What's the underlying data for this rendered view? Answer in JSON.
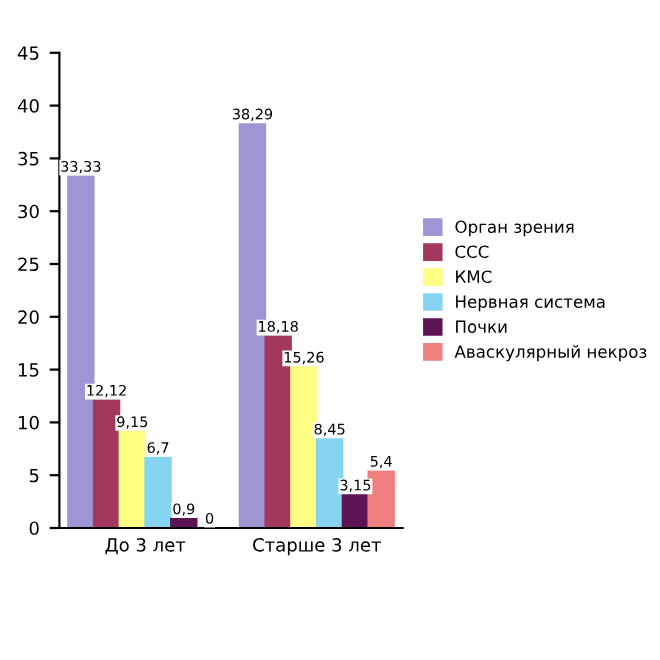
{
  "chart_data": {
    "type": "bar",
    "categories": [
      "До 3 лет",
      "Старше 3 лет"
    ],
    "series": [
      {
        "name": "Орган зрения",
        "color": "#9f94d4",
        "values": [
          33.33,
          38.29
        ],
        "value_labels": [
          "33,33",
          "38,29"
        ]
      },
      {
        "name": "ССС",
        "color": "#a3385e",
        "values": [
          12.12,
          18.18
        ],
        "value_labels": [
          "12,12",
          "18,18"
        ]
      },
      {
        "name": "КМС",
        "color": "#ffff84",
        "values": [
          9.15,
          15.26
        ],
        "value_labels": [
          "9,15",
          "15,26"
        ]
      },
      {
        "name": "Нервная система",
        "color": "#86d3f2",
        "values": [
          6.7,
          8.45
        ],
        "value_labels": [
          "6,7",
          "8,45"
        ]
      },
      {
        "name": "Почки",
        "color": "#5c1454",
        "values": [
          0.9,
          3.15
        ],
        "value_labels": [
          "0,9",
          "3,15"
        ]
      },
      {
        "name": "Аваскулярный некроз",
        "color": "#f08080",
        "values": [
          0,
          5.4
        ],
        "value_labels": [
          "0",
          "5,4"
        ]
      }
    ],
    "ylim": [
      0,
      45
    ],
    "yticks": [
      0,
      5,
      10,
      15,
      20,
      25,
      30,
      35,
      40,
      45
    ],
    "grid": false,
    "legend": "right"
  }
}
